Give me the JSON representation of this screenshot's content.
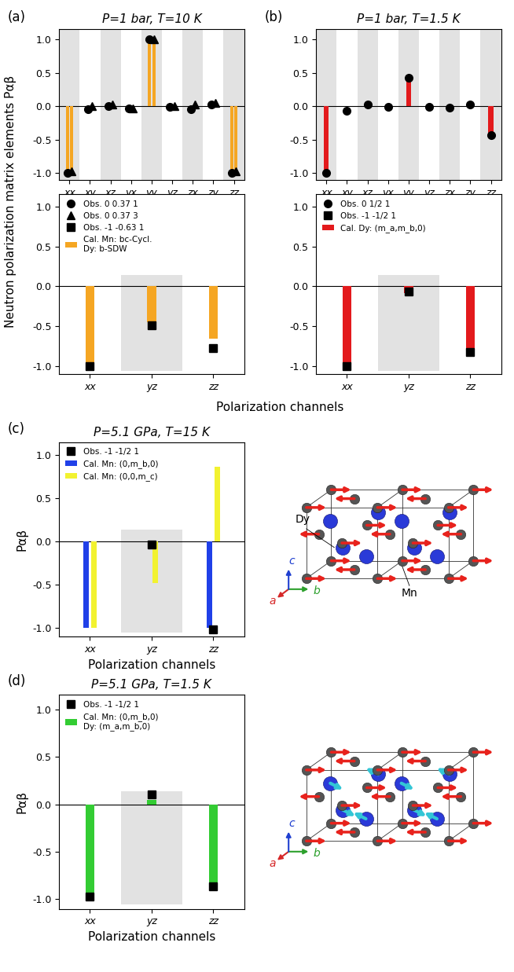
{
  "chart_data": [
    {
      "type": "bar",
      "panel_label": "(a)",
      "title": "P=1 bar, T=10 K",
      "ylabel": "Neutron polarization matrix elements Pαβ",
      "categories": [
        "xx",
        "xy",
        "xz",
        "yx",
        "yy",
        "yz",
        "zx",
        "zy",
        "zz"
      ],
      "ylim": [
        -1.1,
        1.15
      ],
      "yticks": [
        {
          "value": -1.0,
          "label": "-1.0"
        },
        {
          "value": -0.5,
          "label": "-0.5"
        },
        {
          "value": 0.0,
          "label": "0.0"
        },
        {
          "value": 0.5,
          "label": "0.5"
        },
        {
          "value": 1.0,
          "label": "1.0"
        }
      ],
      "series": [
        {
          "type": "bar",
          "color": "#f5a623",
          "values": [
            -1.0,
            0.0,
            0.0,
            0.0,
            1.0,
            0.0,
            0.0,
            0.0,
            -1.0
          ]
        },
        {
          "type": "bar",
          "color": "#f5a623",
          "values": [
            -1.0,
            0.0,
            0.0,
            0.0,
            1.0,
            0.0,
            0.0,
            0.0,
            -1.0
          ]
        },
        {
          "type": "scatter",
          "marker": "circle",
          "color": "#000000",
          "values": [
            -1.0,
            -0.05,
            0.0,
            -0.03,
            1.0,
            -0.01,
            -0.05,
            0.03,
            -1.0
          ]
        },
        {
          "type": "scatter",
          "marker": "triangle",
          "color": "#000000",
          "values": [
            -0.97,
            0.0,
            0.02,
            -0.03,
            1.0,
            0.0,
            0.02,
            0.05,
            -0.97
          ]
        }
      ]
    },
    {
      "type": "bar",
      "xlabel": "Polarization channels",
      "legend": "upper left",
      "categories": [
        "xx",
        "yz",
        "zz"
      ],
      "ylim": [
        -1.1,
        1.15
      ],
      "yticks": [
        {
          "value": -1.0,
          "label": "-1.0"
        },
        {
          "value": -0.5,
          "label": "-0.5"
        },
        {
          "value": 0.0,
          "label": "0.0"
        },
        {
          "value": 0.5,
          "label": "0.5"
        },
        {
          "value": 1.0,
          "label": "1.0"
        }
      ],
      "series": [
        {
          "type": "scatter",
          "name": "Obs. 0 0.37 1",
          "marker": "circle",
          "color": "#000000",
          "values": [
            null,
            null,
            null
          ]
        },
        {
          "type": "scatter",
          "name": "Obs. 0 0.37 3",
          "marker": "triangle",
          "color": "#000000",
          "values": [
            null,
            null,
            null
          ]
        },
        {
          "type": "scatter",
          "name": "Obs. -1 -0.63 1",
          "marker": "square",
          "color": "#000000",
          "values": [
            -1.0,
            -0.49,
            -0.77
          ]
        },
        {
          "type": "bar",
          "name": "Cal. Mn: bc-Cycl.\nDy: b-SDW",
          "color": "#f5a623",
          "values": [
            -1.0,
            -0.45,
            -0.66
          ]
        }
      ]
    },
    {
      "type": "bar",
      "panel_label": "(b)",
      "title": "P=1 bar, T=1.5 K",
      "categories": [
        "xx",
        "xy",
        "xz",
        "yx",
        "yy",
        "yz",
        "zx",
        "zy",
        "zz"
      ],
      "ylim": [
        -1.1,
        1.15
      ],
      "yticks": [
        {
          "value": -1.0,
          "label": "-1.0"
        },
        {
          "value": -0.5,
          "label": "-0.5"
        },
        {
          "value": 0.0,
          "label": "0.0"
        },
        {
          "value": 0.5,
          "label": "0.5"
        },
        {
          "value": 1.0,
          "label": "1.0"
        }
      ],
      "series": [
        {
          "type": "bar",
          "color": "#e31a1c",
          "values": [
            -1.0,
            0.0,
            0.0,
            0.0,
            0.42,
            0.0,
            0.0,
            0.0,
            -0.42
          ]
        },
        {
          "type": "scatter",
          "marker": "circle",
          "color": "#000000",
          "values": [
            -1.0,
            -0.07,
            0.02,
            -0.01,
            0.42,
            -0.01,
            -0.02,
            0.02,
            -0.43
          ]
        }
      ]
    },
    {
      "type": "bar",
      "legend": "upper left",
      "categories": [
        "xx",
        "yz",
        "zz"
      ],
      "ylim": [
        -1.1,
        1.15
      ],
      "yticks": [
        {
          "value": -1.0,
          "label": "-1.0"
        },
        {
          "value": -0.5,
          "label": "-0.5"
        },
        {
          "value": 0.0,
          "label": "0.0"
        },
        {
          "value": 0.5,
          "label": "0.5"
        },
        {
          "value": 1.0,
          "label": "1.0"
        }
      ],
      "series": [
        {
          "type": "scatter",
          "name": "Obs. 0 1/2 1",
          "marker": "circle",
          "color": "#000000",
          "values": [
            null,
            null,
            null
          ]
        },
        {
          "type": "scatter",
          "name": "Obs. -1 -1/2 1",
          "marker": "square",
          "color": "#000000",
          "values": [
            -1.0,
            -0.07,
            -0.82
          ]
        },
        {
          "type": "bar",
          "name": "Cal. Dy: (m_a,m_b,0)",
          "color": "#e31a1c",
          "values": [
            -1.0,
            -0.08,
            -0.8
          ]
        }
      ]
    },
    {
      "type": "bar",
      "panel_label": "(c)",
      "title": "P=5.1 GPa, T=15 K",
      "ylabel": "Pαβ",
      "xlabel": "Polarization channels",
      "legend": "upper left",
      "categories": [
        "xx",
        "yz",
        "zz"
      ],
      "ylim": [
        -1.1,
        1.15
      ],
      "yticks": [
        {
          "value": -1.0,
          "label": "-1.0"
        },
        {
          "value": -0.5,
          "label": "-0.5"
        },
        {
          "value": 0.0,
          "label": "0.0"
        },
        {
          "value": 0.5,
          "label": "0.5"
        },
        {
          "value": 1.0,
          "label": "1.0"
        }
      ],
      "series": [
        {
          "type": "scatter",
          "name": "Obs. -1 -1/2 1",
          "marker": "square",
          "color": "#000000",
          "values": [
            null,
            -0.03,
            -1.02
          ]
        },
        {
          "type": "bar",
          "name": "Cal. Mn: (0,m_b,0)",
          "color": "#2040e8",
          "values": [
            -1.0,
            0.0,
            -1.0
          ]
        },
        {
          "type": "bar",
          "name": "Cal. Mn: (0,0,m_c)",
          "color": "#f2f230",
          "values": [
            -1.0,
            -0.48,
            0.87
          ]
        }
      ],
      "structure": {
        "labels": [
          "Dy",
          "Mn"
        ],
        "axes": [
          "a",
          "b",
          "c"
        ],
        "axis_colors": [
          "#d62728",
          "#2ca02c",
          "#1f3fd0"
        ],
        "dy_color": "#2a3ad8",
        "mn_color": "#555555",
        "mn_moment_color": "#e8221c"
      }
    },
    {
      "type": "bar",
      "panel_label": "(d)",
      "title": "P=5.1 GPa, T=1.5 K",
      "ylabel": "Pαβ",
      "xlabel": "Polarization channels",
      "legend": "upper left",
      "categories": [
        "xx",
        "yz",
        "zz"
      ],
      "ylim": [
        -1.1,
        1.15
      ],
      "yticks": [
        {
          "value": -1.0,
          "label": "-1.0"
        },
        {
          "value": -0.5,
          "label": "-0.5"
        },
        {
          "value": 0.0,
          "label": "0.0"
        },
        {
          "value": 0.5,
          "label": "0.5"
        },
        {
          "value": 1.0,
          "label": "1.0"
        }
      ],
      "series": [
        {
          "type": "scatter",
          "name": "Obs. -1 -1/2 1",
          "marker": "square",
          "color": "#000000",
          "values": [
            -0.97,
            0.1,
            -0.86
          ]
        },
        {
          "type": "bar",
          "name": "Cal. Mn: (0,m_b,0)\nDy: (m_a,m_b,0)",
          "color": "#33cc33",
          "values": [
            -1.0,
            0.05,
            -0.86
          ]
        }
      ],
      "structure": {
        "axes": [
          "a",
          "b",
          "c"
        ],
        "axis_colors": [
          "#d62728",
          "#2ca02c",
          "#1f3fd0"
        ],
        "dy_color": "#2a3ad8",
        "mn_color": "#555555",
        "mn_moment_color": "#e8221c",
        "dy_moment_color": "#33c6d6"
      }
    }
  ]
}
